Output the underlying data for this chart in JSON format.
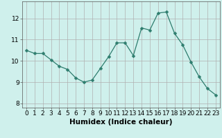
{
  "x": [
    0,
    1,
    2,
    3,
    4,
    5,
    6,
    7,
    8,
    9,
    10,
    11,
    12,
    13,
    14,
    15,
    16,
    17,
    18,
    19,
    20,
    21,
    22,
    23
  ],
  "y": [
    10.5,
    10.35,
    10.35,
    10.05,
    9.75,
    9.6,
    9.2,
    9.0,
    9.1,
    9.65,
    10.2,
    10.85,
    10.85,
    10.25,
    11.55,
    11.45,
    12.25,
    12.3,
    11.3,
    10.75,
    9.95,
    9.25,
    8.7,
    8.4
  ],
  "line_color": "#2e7d6e",
  "marker": "D",
  "marker_size": 2.5,
  "bg_color": "#cff0ec",
  "grid_color_major": "#b0b0b0",
  "grid_color_minor": "#d8d8d8",
  "xlabel": "Humidex (Indice chaleur)",
  "ylim": [
    7.8,
    12.8
  ],
  "xlim": [
    -0.5,
    23.5
  ],
  "yticks": [
    8,
    9,
    10,
    11,
    12
  ],
  "xticks": [
    0,
    1,
    2,
    3,
    4,
    5,
    6,
    7,
    8,
    9,
    10,
    11,
    12,
    13,
    14,
    15,
    16,
    17,
    18,
    19,
    20,
    21,
    22,
    23
  ],
  "tick_fontsize": 6.5,
  "xlabel_fontsize": 7.5
}
